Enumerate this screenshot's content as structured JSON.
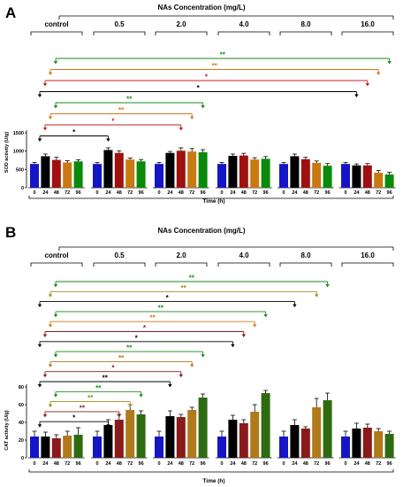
{
  "panels": [
    {
      "letter": "A",
      "header": "NAs Concentration (mg/L)",
      "groups": [
        "control",
        "0.5",
        "2.0",
        "4.0",
        "8.0",
        "16.0"
      ],
      "ylabel": "SOD activity (U/g)",
      "xlabel": "Time (h)",
      "yticks": [
        "0",
        "500",
        "1000",
        "1500"
      ]
    },
    {
      "letter": "B",
      "header": "NAs Concentration (mg/L)",
      "groups": [
        "control",
        "0.5",
        "2.0",
        "4.0",
        "8.0",
        "16.0"
      ],
      "ylabel": "CAT activity (U/g)",
      "xlabel": "Time (h)",
      "yticks": [
        "0",
        "20",
        "40",
        "60",
        "80"
      ]
    }
  ],
  "chart_data": [
    {
      "type": "bar",
      "title": "NAs Concentration (mg/L)",
      "ylabel": "SOD activity (U/g)",
      "xlabel": "Time (h)",
      "ylim": [
        0,
        1500
      ],
      "groups": [
        "control",
        "0.5",
        "2.0",
        "4.0",
        "8.0",
        "16.0"
      ],
      "categories": [
        "0",
        "24",
        "48",
        "72",
        "96"
      ],
      "colors": [
        "#1515c8",
        "#000000",
        "#a01010",
        "#c87a10",
        "#0a8a0a"
      ],
      "series": [
        {
          "values": [
            650,
            860,
            760,
            690,
            720
          ]
        },
        {
          "values": [
            650,
            1030,
            950,
            770,
            720
          ]
        },
        {
          "values": [
            650,
            950,
            1010,
            990,
            970
          ]
        },
        {
          "values": [
            650,
            870,
            880,
            770,
            790
          ]
        },
        {
          "values": [
            650,
            860,
            780,
            680,
            600
          ]
        },
        {
          "values": [
            650,
            610,
            610,
            410,
            360
          ]
        }
      ],
      "errors": [
        [
          40,
          60,
          70,
          50,
          40
        ],
        [
          40,
          60,
          60,
          40,
          50
        ],
        [
          40,
          40,
          80,
          80,
          70
        ],
        [
          40,
          50,
          60,
          50,
          60
        ],
        [
          40,
          60,
          50,
          50,
          60
        ],
        [
          40,
          40,
          50,
          60,
          60
        ]
      ],
      "annotations": [
        {
          "label": "**",
          "color": "#178a17",
          "from_group": 0,
          "to_group": 5,
          "to_cat": 4,
          "level": 1
        },
        {
          "label": "**",
          "color": "#d4781c",
          "from_group": 0,
          "to_group": 5,
          "to_cat": 3,
          "level": 2
        },
        {
          "label": "*",
          "color": "#c82020",
          "from_group": 0,
          "to_group": 5,
          "to_cat": 2,
          "level": 3
        },
        {
          "label": "*",
          "color": "#000000",
          "from_group": 0,
          "to_group": 5,
          "to_cat": 1,
          "level": 4
        },
        {
          "label": "**",
          "color": "#178a17",
          "from_group": 0,
          "to_group": 2,
          "to_cat": 4,
          "level": 5
        },
        {
          "label": "**",
          "color": "#d4781c",
          "from_group": 0,
          "to_group": 2,
          "to_cat": 3,
          "level": 6
        },
        {
          "label": "*",
          "color": "#c82020",
          "from_group": 0,
          "to_group": 2,
          "to_cat": 2,
          "level": 7
        },
        {
          "label": "*",
          "color": "#000000",
          "from_group": 0,
          "to_group": 1,
          "to_cat": 1,
          "level": 8
        }
      ]
    },
    {
      "type": "bar",
      "title": "NAs Concentration (mg/L)",
      "ylabel": "CAT activity (U/g)",
      "xlabel": "Time (h)",
      "ylim": [
        0,
        80
      ],
      "groups": [
        "control",
        "0.5",
        "2.0",
        "4.0",
        "8.0",
        "16.0"
      ],
      "categories": [
        "0",
        "24",
        "48",
        "72",
        "96"
      ],
      "colors": [
        "#1515c8",
        "#000000",
        "#8a1a1a",
        "#b07a1a",
        "#2e6a12"
      ],
      "series": [
        {
          "values": [
            24,
            24,
            22,
            25,
            26
          ]
        },
        {
          "values": [
            24,
            37,
            43,
            54,
            49
          ]
        },
        {
          "values": [
            24,
            47,
            46,
            54,
            68
          ]
        },
        {
          "values": [
            24,
            43,
            39,
            52,
            73
          ]
        },
        {
          "values": [
            24,
            37,
            33,
            57,
            65
          ]
        },
        {
          "values": [
            24,
            33,
            34,
            30,
            27
          ]
        }
      ],
      "errors": [
        [
          6,
          5,
          4,
          5,
          8
        ],
        [
          6,
          6,
          6,
          6,
          4
        ],
        [
          6,
          6,
          3,
          3,
          4
        ],
        [
          6,
          5,
          4,
          8,
          3
        ],
        [
          6,
          6,
          2,
          10,
          8
        ],
        [
          6,
          6,
          4,
          3,
          3
        ]
      ],
      "annotations": [
        {
          "label": "**",
          "color": "#178a17",
          "from_group": 0,
          "to_group": 4,
          "to_cat": 4,
          "level": 1
        },
        {
          "label": "**",
          "color": "#a08a1a",
          "from_group": 0,
          "to_group": 4,
          "to_cat": 3,
          "level": 2
        },
        {
          "label": "*",
          "color": "#000000",
          "from_group": 0,
          "to_group": 4,
          "to_cat": 1,
          "level": 3
        },
        {
          "label": "**",
          "color": "#178a17",
          "from_group": 0,
          "to_group": 3,
          "to_cat": 4,
          "level": 4
        },
        {
          "label": "**",
          "color": "#d4781c",
          "from_group": 0,
          "to_group": 3,
          "to_cat": 3,
          "level": 5
        },
        {
          "label": "*",
          "color": "#8a1a1a",
          "from_group": 0,
          "to_group": 3,
          "to_cat": 2,
          "level": 6
        },
        {
          "label": "*",
          "color": "#000000",
          "from_group": 0,
          "to_group": 3,
          "to_cat": 1,
          "level": 7
        },
        {
          "label": "**",
          "color": "#178a17",
          "from_group": 0,
          "to_group": 2,
          "to_cat": 4,
          "level": 8
        },
        {
          "label": "**",
          "color": "#b07a1a",
          "from_group": 0,
          "to_group": 2,
          "to_cat": 3,
          "level": 9
        },
        {
          "label": "*",
          "color": "#8a1a1a",
          "from_group": 0,
          "to_group": 2,
          "to_cat": 2,
          "level": 10
        },
        {
          "label": "**",
          "color": "#000000",
          "from_group": 0,
          "to_group": 2,
          "to_cat": 1,
          "level": 11
        },
        {
          "label": "**",
          "color": "#178a17",
          "from_group": 0,
          "to_group": 1,
          "to_cat": 4,
          "level": 12
        },
        {
          "label": "**",
          "color": "#a08a1a",
          "from_group": 0,
          "to_group": 1,
          "to_cat": 3,
          "level": 13
        },
        {
          "label": "**",
          "color": "#8a1a1a",
          "from_group": 0,
          "to_group": 1,
          "to_cat": 2,
          "level": 14
        },
        {
          "label": "*",
          "color": "#000000",
          "from_group": 0,
          "to_group": 1,
          "to_cat": 1,
          "level": 15
        }
      ]
    }
  ]
}
